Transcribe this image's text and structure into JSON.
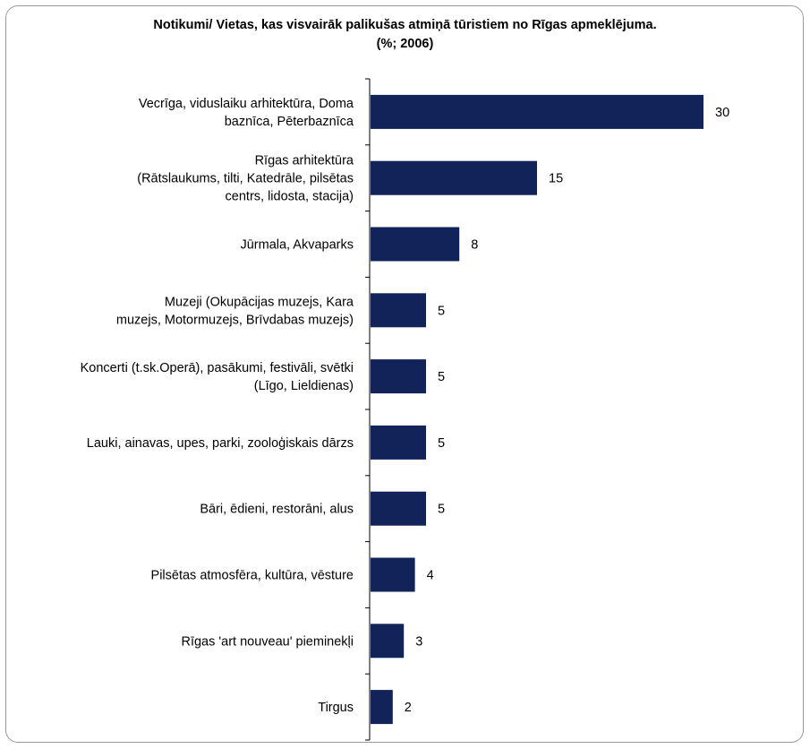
{
  "chart_data": {
    "type": "bar",
    "orientation": "horizontal",
    "title": "Notikumi/ Vietas, kas visvairāk palikušas atmiņā tūristiem no Rīgas apmeklējuma.",
    "subtitle": "(%; 2006)",
    "categories": [
      [
        "Vecrīga, viduslaiku  arhitektūra, Doma",
        "baznīca, Pēterbaznīca"
      ],
      [
        "Rīgas arhitektūra",
        "(Rātslaukums, tilti, Katedrāle, pilsētas",
        "centrs, lidosta,  stacija)"
      ],
      [
        "Jūrmala, Akvaparks"
      ],
      [
        "Muzeji (Okupācijas muzejs, Kara",
        "muzejs, Motormuzejs, Brīvdabas muzejs)"
      ],
      [
        "Koncerti (t.sk.Operā), pasākumi, festivāli, svētki",
        "(Līgo, Lieldienas)"
      ],
      [
        "Lauki, ainavas,  upes, parki, zooloģiskais  dārzs"
      ],
      [
        "Bāri, ēdieni,  restorāni, alus"
      ],
      [
        "Pilsētas atmosfēra,  kultūra, vēsture"
      ],
      [
        "Rīgas 'art nouveau'  pieminekļi"
      ],
      [
        "Tirgus"
      ]
    ],
    "values": [
      30,
      15,
      8,
      5,
      5,
      5,
      5,
      4,
      3,
      2
    ],
    "xlim": [
      0,
      32
    ],
    "grid": false,
    "legend": "none",
    "bar_color": "#12235a"
  }
}
